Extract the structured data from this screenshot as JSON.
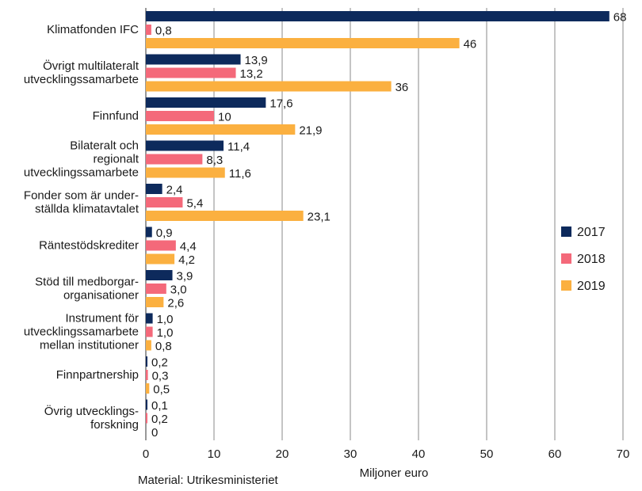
{
  "chart_data": {
    "type": "bar",
    "orientation": "horizontal",
    "categories": [
      [
        "Klimatfonden IFC"
      ],
      [
        "Övrigt multilateralt",
        "utvecklingssamarbete"
      ],
      [
        "Finnfund"
      ],
      [
        "Bilateralt  och",
        "regionalt",
        "utvecklingssamarbete"
      ],
      [
        "Fonder som är under-",
        "ställda klimatavtalet"
      ],
      [
        "Räntestödskrediter"
      ],
      [
        "Stöd till medborgar-",
        "organisationer"
      ],
      [
        "Instrument för",
        "utvecklingssamarbete",
        "mellan institutioner"
      ],
      [
        "Finnpartnership"
      ],
      [
        "Övrig utvecklings-",
        "forskning"
      ]
    ],
    "series": [
      {
        "name": "2017",
        "color": "#0d2a5c",
        "values": [
          68,
          13.9,
          17.6,
          11.4,
          2.4,
          0.9,
          3.9,
          1.0,
          0.2,
          0.1
        ],
        "labels": [
          "68",
          "13,9",
          "17,6",
          "11,4",
          "2,4",
          "0,9",
          "3,9",
          "1,0",
          "0,2",
          "0,1"
        ]
      },
      {
        "name": "2018",
        "color": "#f4697a",
        "values": [
          0.8,
          13.2,
          10,
          8.3,
          5.4,
          4.4,
          3.0,
          1.0,
          0.3,
          0.2
        ],
        "labels": [
          "0,8",
          "13,2",
          "10",
          "8,3",
          "5,4",
          "4,4",
          "3,0",
          "1,0",
          "0,3",
          "0,2"
        ]
      },
      {
        "name": "2019",
        "color": "#fbb040",
        "values": [
          46,
          36,
          21.9,
          11.6,
          23.1,
          4.2,
          2.6,
          0.8,
          0.5,
          0
        ],
        "labels": [
          "46",
          "36",
          "21,9",
          "11,6",
          "23,1",
          "4,2",
          "2,6",
          "0,8",
          "0,5",
          "0"
        ]
      }
    ],
    "xlabel": "Miljoner euro",
    "xlim": [
      0,
      70
    ],
    "xticks": [
      0,
      10,
      20,
      30,
      40,
      50,
      60,
      70
    ],
    "grid": "vertical",
    "legend": "right",
    "source": "Material: Utrikesministeriet"
  }
}
